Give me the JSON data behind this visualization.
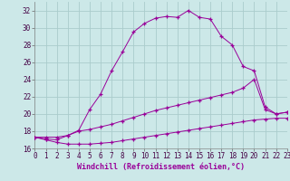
{
  "xlabel": "Windchill (Refroidissement éolien,°C)",
  "bg_color": "#cce8e8",
  "grid_color": "#aacccc",
  "line_color": "#990099",
  "xlim": [
    0,
    23
  ],
  "ylim": [
    16,
    33
  ],
  "xticks": [
    0,
    1,
    2,
    3,
    4,
    5,
    6,
    7,
    8,
    9,
    10,
    11,
    12,
    13,
    14,
    15,
    16,
    17,
    18,
    19,
    20,
    21,
    22,
    23
  ],
  "yticks": [
    16,
    18,
    20,
    22,
    24,
    26,
    28,
    30,
    32
  ],
  "curve1_x": [
    0,
    1,
    2,
    3,
    4,
    5,
    6,
    7,
    8,
    9,
    10,
    11,
    12,
    13,
    14,
    15,
    16,
    17,
    18,
    19,
    20,
    21,
    22,
    23
  ],
  "curve1_y": [
    17.3,
    17.1,
    17.0,
    17.5,
    18.1,
    20.5,
    22.3,
    25.0,
    27.2,
    29.5,
    30.5,
    31.1,
    31.3,
    31.2,
    32.0,
    31.2,
    31.0,
    29.0,
    28.0,
    25.5,
    25.0,
    20.8,
    20.0,
    20.2
  ],
  "curve2_x": [
    0,
    1,
    2,
    3,
    4,
    5,
    6,
    7,
    8,
    9,
    10,
    11,
    12,
    13,
    14,
    15,
    16,
    17,
    18,
    19,
    20,
    21,
    22,
    23
  ],
  "curve2_y": [
    17.3,
    17.3,
    17.3,
    17.5,
    18.0,
    18.2,
    18.5,
    18.8,
    19.2,
    19.6,
    20.0,
    20.4,
    20.7,
    21.0,
    21.3,
    21.6,
    21.9,
    22.2,
    22.5,
    23.0,
    24.0,
    20.5,
    20.0,
    20.2
  ],
  "curve3_x": [
    0,
    1,
    2,
    3,
    4,
    5,
    6,
    7,
    8,
    9,
    10,
    11,
    12,
    13,
    14,
    15,
    16,
    17,
    18,
    19,
    20,
    21,
    22,
    23
  ],
  "curve3_y": [
    17.3,
    17.0,
    16.7,
    16.5,
    16.5,
    16.5,
    16.6,
    16.7,
    16.9,
    17.1,
    17.3,
    17.5,
    17.7,
    17.9,
    18.1,
    18.3,
    18.5,
    18.7,
    18.9,
    19.1,
    19.3,
    19.4,
    19.5,
    19.5
  ],
  "xlabel_fontsize": 6,
  "tick_fontsize": 5.5
}
